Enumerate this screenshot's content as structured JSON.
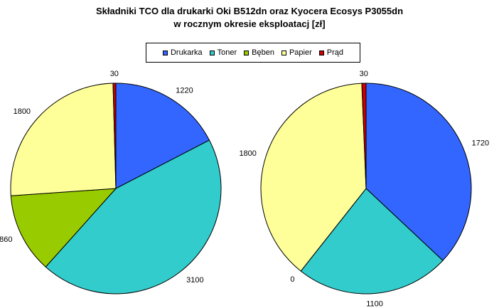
{
  "chart_data": [
    {
      "type": "pie",
      "title_lines": [
        "Składniki TCO dla drukarki Oki B512dn oraz Kyocera Ecosys P3055dn",
        "w rocznym okresie eksploatacj [zł]"
      ],
      "categories": [
        "Drukarka",
        "Toner",
        "Bęben",
        "Papier",
        "Prąd"
      ],
      "values": [
        1220,
        3100,
        860,
        1800,
        30
      ],
      "colors": [
        "#3366ff",
        "#33cccc",
        "#99cc00",
        "#ffff99",
        "#cc0000"
      ],
      "legend": "top-center"
    },
    {
      "type": "pie",
      "categories": [
        "Drukarka",
        "Toner",
        "Bęben",
        "Papier",
        "Prąd"
      ],
      "values": [
        1720,
        1100,
        0,
        1800,
        30
      ],
      "colors": [
        "#3366ff",
        "#33cccc",
        "#99cc00",
        "#ffff99",
        "#cc0000"
      ],
      "legend": "top-center"
    }
  ]
}
